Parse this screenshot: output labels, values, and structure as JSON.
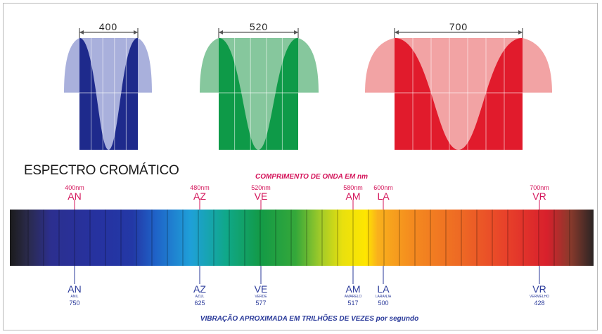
{
  "title": "ESPECTRO CROMÁTICO",
  "caption_top": "COMPRIMENTO DE ONDA EM nm",
  "caption_bottom": "VIBRAÇÃO APROXIMADA EM TRILHÕES DE VEZES por segundo",
  "waves": [
    {
      "label": "400",
      "color": "#1e2a8c",
      "light": "#a9b0dc"
    },
    {
      "label": "520",
      "color": "#0e9a48",
      "light": "#86c79d"
    },
    {
      "label": "700",
      "color": "#e11b2c",
      "light": "#f2a3a4"
    }
  ],
  "markers": [
    {
      "code": "AN",
      "nm": "400nm",
      "name": "ANIL",
      "freq": "750"
    },
    {
      "code": "AZ",
      "nm": "480nm",
      "name": "AZUL",
      "freq": "625"
    },
    {
      "code": "VE",
      "nm": "520nm",
      "name": "VERDE",
      "freq": "577"
    },
    {
      "code": "AM",
      "nm": "580nm",
      "name": "AMARELO",
      "freq": "517"
    },
    {
      "code": "LA",
      "nm": "600nm",
      "name": "LARANJA",
      "freq": "500"
    },
    {
      "code": "VR",
      "nm": "700nm",
      "name": "VERMELHO",
      "freq": "428"
    }
  ],
  "colors": {
    "label_top": "#d4145a",
    "label_bottom": "#2a3a9a"
  }
}
